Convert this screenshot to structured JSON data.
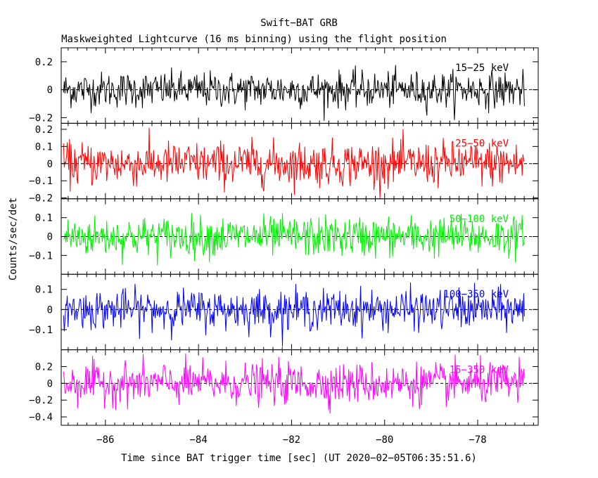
{
  "chart_data": {
    "type": "line",
    "title": "Swift−BAT GRB",
    "subtitle": "Maskweighted Lightcurve (16 ms binning) using the flight position",
    "xlabel": "Time since BAT trigger time [sec] (UT 2020−02−05T06:35:51.6)",
    "ylabel": "Counts/sec/det",
    "xlim": [
      -86.95,
      -76.7
    ],
    "x_start": -86.9,
    "x_end": -77.0,
    "bin_size": 0.016,
    "x_ticks": [
      -86,
      -84,
      -82,
      -80,
      -78
    ],
    "x_tick_labels": [
      "−86",
      "−84",
      "−82",
      "−80",
      "−78"
    ],
    "grid": false,
    "series": [
      {
        "name": "15−25 keV",
        "color": "#000000",
        "ylim": [
          -0.24,
          0.3
        ],
        "amplitude": 0.085,
        "yticks": [
          -0.2,
          0,
          0.2
        ],
        "ytick_labels": [
          "−0.2",
          "0",
          "0.2"
        ]
      },
      {
        "name": "25−50 keV",
        "color": "#ff0000",
        "ylim": [
          -0.205,
          0.235
        ],
        "amplitude": 0.085,
        "yticks": [
          -0.2,
          -0.1,
          0,
          0.1,
          0.2
        ],
        "ytick_labels": [
          "−0.2",
          "−0.1",
          "0",
          "0.1",
          "0.2"
        ]
      },
      {
        "name": "50−100 keV",
        "color": "#00ee00",
        "ylim": [
          -0.2,
          0.2
        ],
        "amplitude": 0.07,
        "yticks": [
          -0.1,
          0,
          0.1
        ],
        "ytick_labels": [
          "−0.1",
          "0",
          "0.1"
        ]
      },
      {
        "name": "100−350 keV",
        "color": "#0000ff",
        "ylim": [
          -0.2,
          0.175
        ],
        "amplitude": 0.065,
        "yticks": [
          -0.1,
          0,
          0.1
        ],
        "ytick_labels": [
          "−0.1",
          "0",
          "0.1"
        ]
      },
      {
        "name": "15−350 keV",
        "color": "#ff00ff",
        "ylim": [
          -0.5,
          0.4
        ],
        "amplitude": 0.16,
        "yticks": [
          -0.4,
          -0.2,
          0,
          0.2
        ],
        "ytick_labels": [
          "−0.4",
          "−0.2",
          "0",
          "0.2"
        ]
      }
    ]
  }
}
